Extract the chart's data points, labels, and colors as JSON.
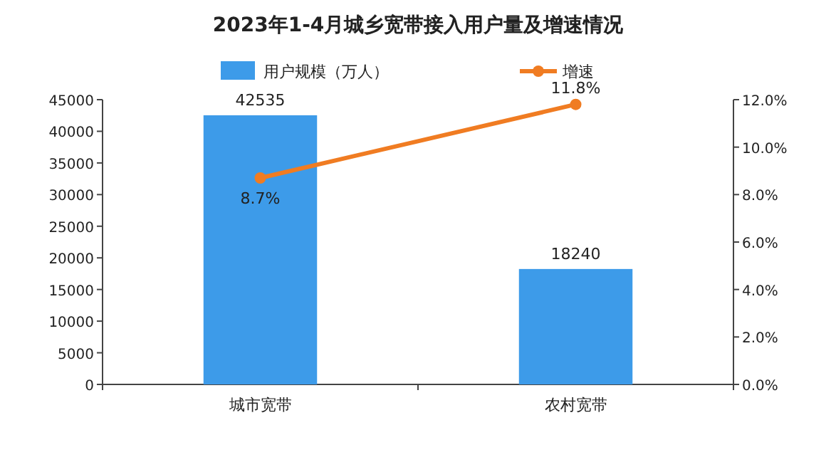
{
  "chart_data": {
    "type": "bar",
    "title": "2023年1-4月城乡宽带接入用户量及增速情况",
    "categories": [
      "城市宽带",
      "农村宽带"
    ],
    "series": [
      {
        "name": "用户规模（万人）",
        "color": "#3d9be9",
        "values": [
          42535,
          18240
        ],
        "value_labels": [
          "42535",
          "18240"
        ]
      },
      {
        "name": "增速",
        "type": "line",
        "axis": "y2",
        "color": "#f07c22",
        "values": [
          8.7,
          11.8
        ],
        "value_labels": [
          "8.7%",
          "11.8%"
        ]
      }
    ],
    "ylim": [
      0,
      45000
    ],
    "yticks": [
      0,
      5000,
      10000,
      15000,
      20000,
      25000,
      30000,
      35000,
      40000,
      45000
    ],
    "y2lim": [
      0,
      12
    ],
    "y2ticks": [
      {
        "value": 0,
        "label": "0.0%"
      },
      {
        "value": 2,
        "label": "2.0%"
      },
      {
        "value": 4,
        "label": "4.0%"
      },
      {
        "value": 6,
        "label": "6.0%"
      },
      {
        "value": 8,
        "label": "8.0%"
      },
      {
        "value": 10,
        "label": "10.0%"
      },
      {
        "value": 12,
        "label": "12.0%"
      }
    ],
    "marker": "circle",
    "legend": "top",
    "grid": false
  }
}
